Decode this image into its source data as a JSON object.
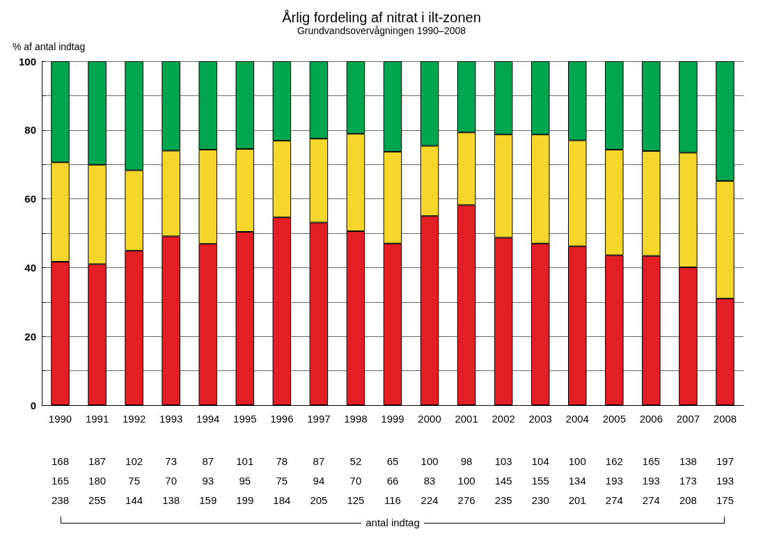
{
  "chart_data": {
    "type": "bar",
    "stacked": true,
    "title": "Årlig fordeling af nitrat i ilt-zonen",
    "subtitle": "Grundvandsovervågningen 1990–2008",
    "ylabel": "% af antal indtag",
    "categories": [
      "1990",
      "1991",
      "1992",
      "1993",
      "1994",
      "1995",
      "1996",
      "1997",
      "1998",
      "1999",
      "2000",
      "2001",
      "2002",
      "2003",
      "2004",
      "2005",
      "2006",
      "2007",
      "2008"
    ],
    "series": [
      {
        "color": "#e31e24",
        "values": [
          41.7,
          41.0,
          44.9,
          49.1,
          46.9,
          50.4,
          54.6,
          53.1,
          50.6,
          47.0,
          55.0,
          58.2,
          48.7,
          47.0,
          46.2,
          43.6,
          43.4,
          40.1,
          31.0
        ]
      },
      {
        "color": "#f5d62a",
        "values": [
          28.9,
          28.9,
          23.4,
          24.9,
          27.4,
          24.1,
          22.3,
          24.4,
          28.3,
          26.7,
          20.4,
          21.1,
          30.0,
          31.7,
          30.8,
          30.7,
          30.5,
          33.3,
          34.2
        ]
      },
      {
        "color": "#00a54f",
        "values": [
          29.4,
          30.1,
          31.7,
          26.0,
          25.7,
          25.5,
          23.1,
          22.5,
          21.1,
          26.3,
          24.6,
          20.7,
          21.3,
          21.3,
          23.0,
          25.7,
          26.1,
          26.6,
          34.8
        ]
      }
    ],
    "ylim": [
      0,
      100
    ],
    "yticks": [
      0,
      {
        "value": 10,
        "label": null
      },
      20,
      {
        "value": 30,
        "label": null
      },
      40,
      {
        "value": 50,
        "label": null
      },
      60,
      {
        "value": 70,
        "label": null
      },
      80,
      {
        "value": 90,
        "label": null
      },
      100
    ],
    "grid": "y",
    "annotations": [
      "168",
      "187",
      "102",
      "73",
      "87",
      "101",
      "78",
      "87",
      "52",
      "65",
      "100",
      "98",
      "103",
      "104",
      "100",
      "162",
      "165",
      "138",
      "197",
      "165",
      "180",
      "75",
      "70",
      "93",
      "95",
      "75",
      "94",
      "70",
      "66",
      "83",
      "100",
      "145",
      "155",
      "134",
      "193",
      "193",
      "173",
      "193",
      "238",
      "255",
      "144",
      "138",
      "159",
      "199",
      "184",
      "205",
      "125",
      "116",
      "224",
      "276",
      "235",
      "230",
      "201",
      "274",
      "274",
      "208",
      "175",
      "antal indtag"
    ]
  }
}
